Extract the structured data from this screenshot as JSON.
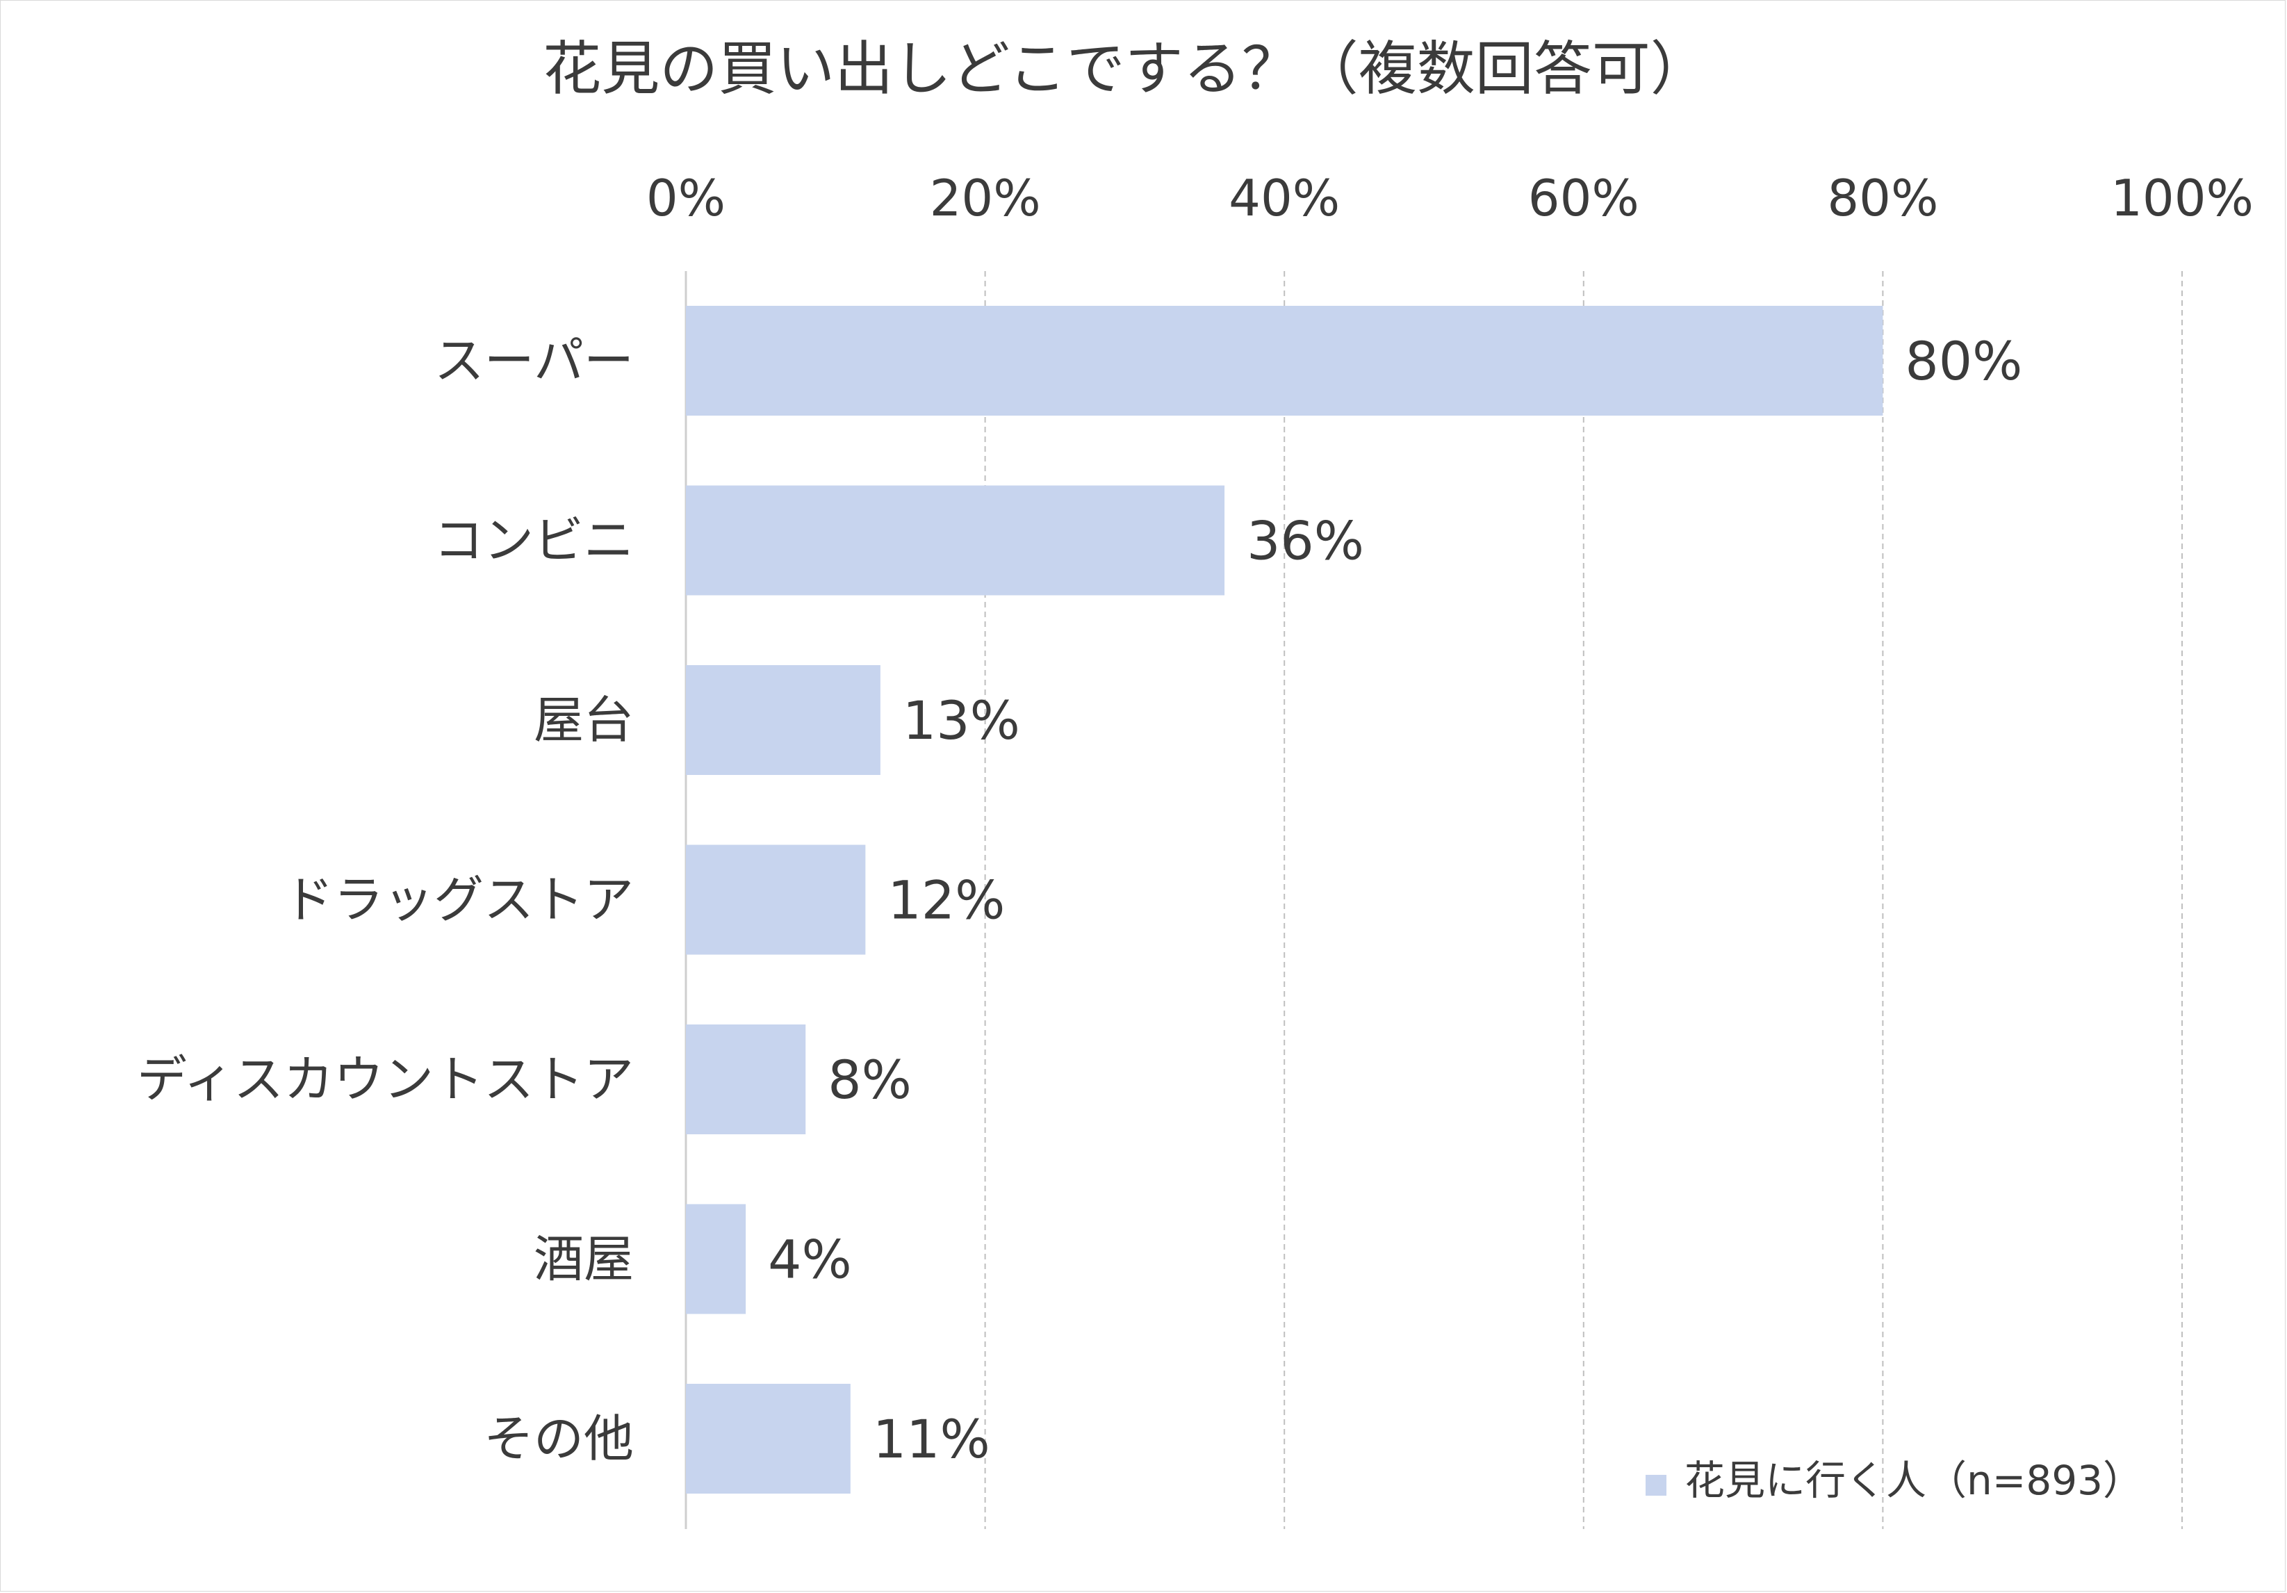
{
  "chart_data": {
    "type": "bar",
    "orientation": "horizontal",
    "title": "花見の買い出しどこでする？（複数回答可）",
    "categories": [
      "スーパー",
      "コンビニ",
      "屋台",
      "ドラッグストア",
      "ディスカウントストア",
      "酒屋",
      "その他"
    ],
    "series": [
      {
        "name": "花見に行く人（n=893）",
        "values": [
          80,
          36,
          13,
          12,
          8,
          4,
          11
        ],
        "labels": [
          "80%",
          "36%",
          "13%",
          "12%",
          "8%",
          "4%",
          "11%"
        ]
      }
    ],
    "xlim": [
      0,
      100
    ],
    "xticks": [
      0,
      20,
      40,
      60,
      80,
      100
    ],
    "xtick_labels": [
      "0%",
      "20%",
      "40%",
      "60%",
      "80%",
      "100%"
    ],
    "xaxis_position": "top",
    "grid": true,
    "legend_position": "bottom-right",
    "colors": {
      "bar": "#c7d4ee",
      "grid": "#bfbfbf",
      "axis": "#cfcfcf",
      "text": "#3b3b3b"
    }
  }
}
